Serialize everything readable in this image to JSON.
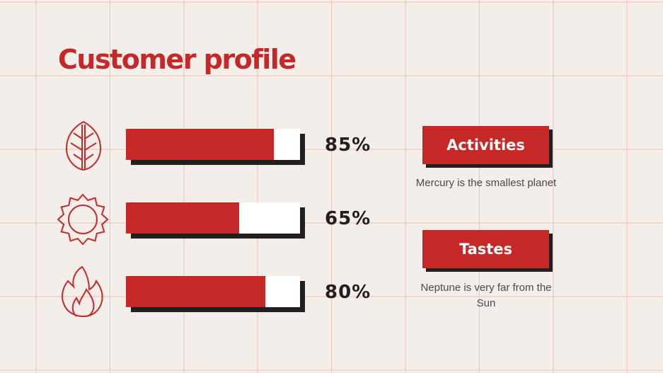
{
  "title": "Customer profile",
  "bars": [
    {
      "icon": "leaf-icon",
      "value": 85,
      "label": "85%"
    },
    {
      "icon": "sun-icon",
      "value": 65,
      "label": "65%"
    },
    {
      "icon": "fire-icon",
      "value": 80,
      "label": "80%"
    }
  ],
  "categories": [
    {
      "label": "Activities",
      "description": "Mercury is the smallest planet"
    },
    {
      "label": "Tastes",
      "description": "Neptune is very far from the Sun"
    }
  ],
  "colors": {
    "accent": "#c62828",
    "dark": "#231f20",
    "background": "#f3eee9",
    "grid": "#efc7bb"
  }
}
